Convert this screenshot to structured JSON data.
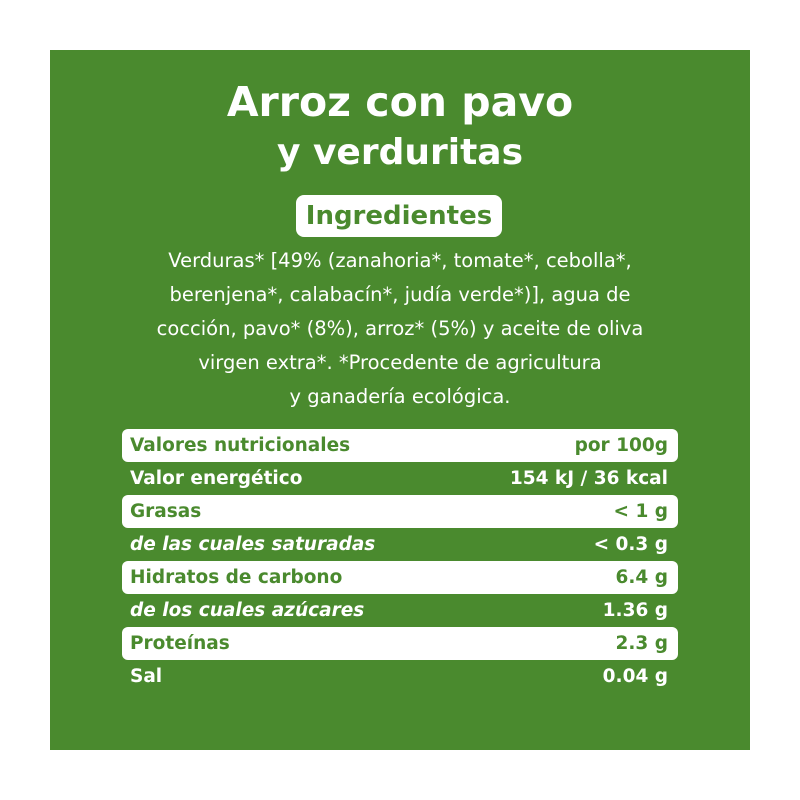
{
  "product": {
    "title_line_1": "Arroz con pavo",
    "title_line_2": "y verduritas"
  },
  "ingredients": {
    "heading": "Ingredientes",
    "lines": [
      "Verduras* [49% (zanahoria*, tomate*, cebolla*,",
      "berenjena*, calabacín*, judía verde*)], agua de",
      "cocción, pavo* (8%), arroz* (5%) y aceite de oliva",
      "virgen extra*. *Procedente de agricultura",
      "y ganadería ecológica."
    ]
  },
  "nutrition": {
    "header": {
      "label": "Valores nutricionales",
      "value": "por 100g"
    },
    "rows": [
      {
        "label": "Valor energético",
        "value": "154 kJ / 36 kcal"
      },
      {
        "label": "Grasas",
        "value": "< 1 g"
      },
      {
        "label": "de las cuales saturadas",
        "value": "< 0.3 g"
      },
      {
        "label": "Hidratos de carbono",
        "value": "6.4 g"
      },
      {
        "label": "de los cuales azúcares",
        "value": "1.36 g"
      },
      {
        "label": "Proteínas",
        "value": "2.3 g"
      },
      {
        "label": "Sal",
        "value": "0.04 g"
      }
    ]
  },
  "colors": {
    "panel_green": "#4a8a2e",
    "band_white": "#ffffff",
    "text_white": "#ffffff"
  }
}
